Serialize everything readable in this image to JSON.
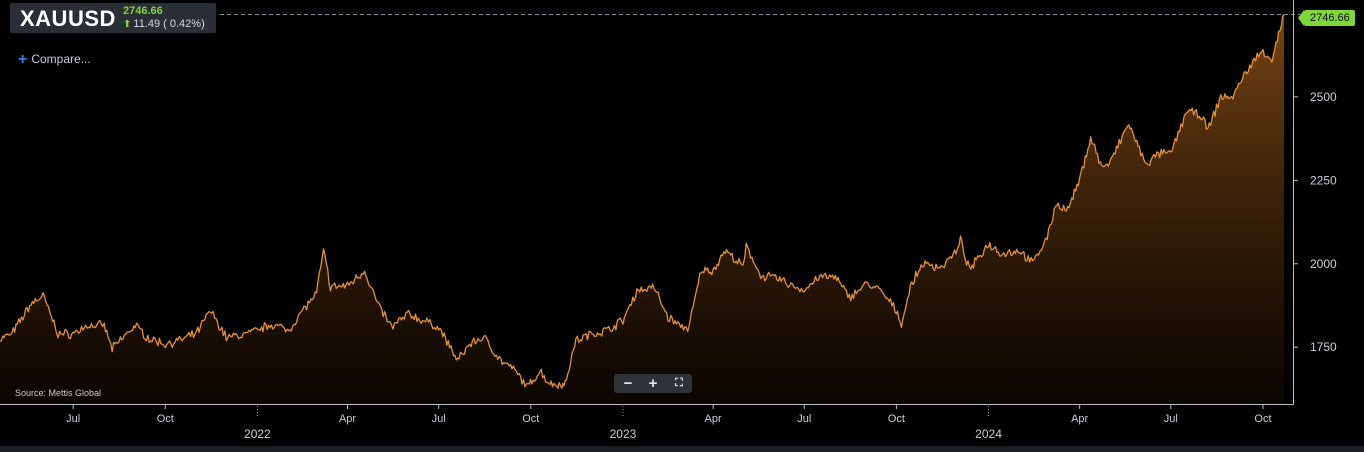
{
  "header": {
    "symbol": "XAUUSD",
    "price": "2746.66",
    "change": "11.49 ( 0.42%)"
  },
  "compare_label": "Compare...",
  "source_text": "Source: Mettis Global",
  "last_price_label": "2746.66",
  "zoom_controls": {
    "zoom_out": "−",
    "zoom_in": "+",
    "fullscreen_icon": "fullscreen-icon"
  },
  "colors": {
    "line": "#e0913a",
    "fill": "#b86a1e",
    "up": "#7fd63a",
    "background": "#000000"
  },
  "chart_data": {
    "type": "area",
    "series": [
      {
        "x": [
          "2021-04-19",
          "2021-05-01",
          "2021-05-20",
          "2021-06-01",
          "2021-06-16",
          "2021-07-01",
          "2021-07-15",
          "2021-08-01",
          "2021-08-09",
          "2021-08-20",
          "2021-09-01",
          "2021-09-15",
          "2021-10-01",
          "2021-10-15",
          "2021-11-01",
          "2021-11-15",
          "2021-12-01",
          "2021-12-15",
          "2022-01-01",
          "2022-01-15",
          "2022-02-01",
          "2022-02-15",
          "2022-03-01",
          "2022-03-08",
          "2022-03-15",
          "2022-04-01",
          "2022-04-18",
          "2022-05-01",
          "2022-05-15",
          "2022-06-01",
          "2022-06-15",
          "2022-07-01",
          "2022-07-20",
          "2022-08-01",
          "2022-08-15",
          "2022-09-01",
          "2022-09-15",
          "2022-09-28",
          "2022-10-10",
          "2022-10-20",
          "2022-11-01",
          "2022-11-03",
          "2022-11-15",
          "2022-12-01",
          "2022-12-15",
          "2023-01-01",
          "2023-01-15",
          "2023-02-01",
          "2023-02-15",
          "2023-03-01",
          "2023-03-08",
          "2023-03-20",
          "2023-04-01",
          "2023-04-13",
          "2023-05-01",
          "2023-05-04",
          "2023-05-20",
          "2023-06-01",
          "2023-06-15",
          "2023-07-01",
          "2023-07-15",
          "2023-08-01",
          "2023-08-15",
          "2023-09-01",
          "2023-09-15",
          "2023-10-01",
          "2023-10-06",
          "2023-10-15",
          "2023-10-27",
          "2023-11-15",
          "2023-12-01",
          "2023-12-04",
          "2023-12-13",
          "2024-01-01",
          "2024-01-15",
          "2024-02-01",
          "2024-02-14",
          "2024-03-01",
          "2024-03-08",
          "2024-03-20",
          "2024-04-01",
          "2024-04-12",
          "2024-04-23",
          "2024-05-01",
          "2024-05-20",
          "2024-06-01",
          "2024-06-07",
          "2024-06-20",
          "2024-07-01",
          "2024-07-17",
          "2024-08-01",
          "2024-08-07",
          "2024-08-20",
          "2024-09-01",
          "2024-09-15",
          "2024-10-01",
          "2024-10-10",
          "2024-10-22"
        ],
        "y": [
          1775,
          1790,
          1880,
          1905,
          1790,
          1790,
          1815,
          1815,
          1745,
          1780,
          1815,
          1775,
          1760,
          1770,
          1790,
          1860,
          1780,
          1785,
          1800,
          1820,
          1800,
          1860,
          1910,
          2040,
          1930,
          1935,
          1980,
          1880,
          1810,
          1850,
          1830,
          1810,
          1710,
          1760,
          1780,
          1710,
          1680,
          1630,
          1680,
          1640,
          1640,
          1630,
          1770,
          1790,
          1800,
          1830,
          1920,
          1930,
          1840,
          1810,
          1810,
          1980,
          1980,
          2040,
          1990,
          2050,
          1960,
          1960,
          1940,
          1920,
          1960,
          1960,
          1900,
          1940,
          1920,
          1860,
          1820,
          1930,
          2000,
          1990,
          2040,
          2070,
          1980,
          2060,
          2030,
          2040,
          2000,
          2090,
          2180,
          2160,
          2250,
          2380,
          2290,
          2300,
          2420,
          2330,
          2300,
          2330,
          2330,
          2460,
          2440,
          2400,
          2500,
          2500,
          2580,
          2640,
          2610,
          2746.66
        ]
      }
    ],
    "x_tick_labels": [
      "Jul",
      "Oct",
      "Apr",
      "Jul",
      "Oct",
      "Apr",
      "Jul",
      "Oct",
      "Apr",
      "Jul",
      "Oct"
    ],
    "x_year_labels": [
      "2022",
      "2023",
      "2024"
    ],
    "y_tick_labels": [
      "1750",
      "2000",
      "2250",
      "2500"
    ],
    "ylim": [
      1580,
      2760
    ],
    "xlim": [
      "2021-04-19",
      "2024-10-31"
    ],
    "grid": false,
    "y_axis_side": "right"
  }
}
